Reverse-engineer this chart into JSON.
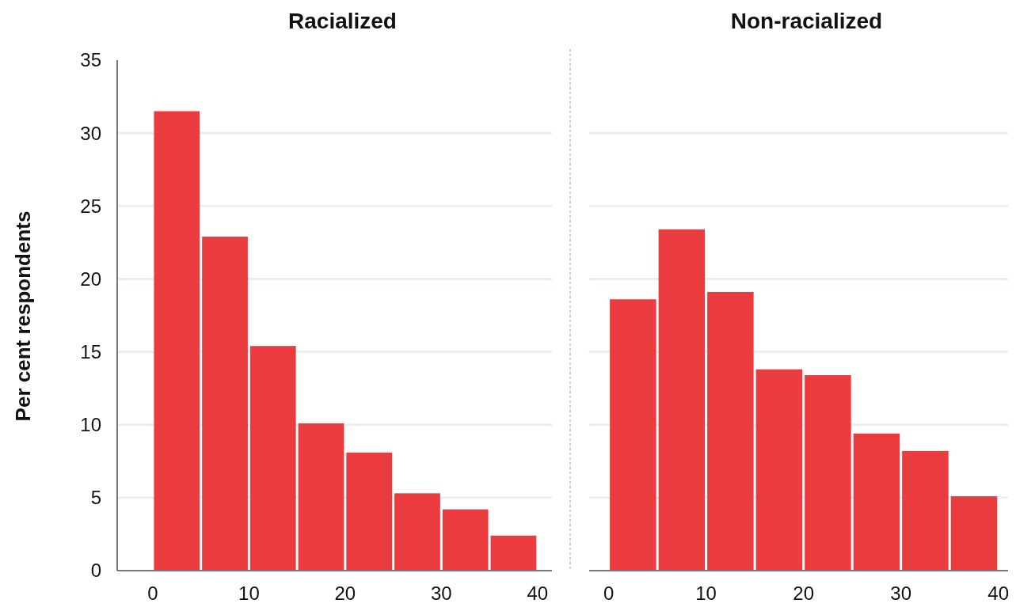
{
  "chart_data": [
    {
      "type": "histogram",
      "title": "Racialized",
      "ylabel": "Per cent respondents",
      "bins": [
        0,
        5,
        10,
        15,
        20,
        25,
        30,
        35,
        40
      ],
      "values": [
        31.5,
        22.9,
        15.4,
        10.1,
        8.1,
        5.3,
        4.2,
        2.4
      ],
      "color": "#ea3b3e",
      "xlim": [
        -3.7,
        41.5
      ],
      "xticks": [
        0,
        10,
        20,
        30,
        40
      ],
      "ylim": [
        0,
        35
      ],
      "yticks": [
        0,
        5,
        10,
        15,
        20,
        25,
        30,
        35
      ],
      "grid": "y"
    },
    {
      "type": "histogram",
      "title": "Non-racialized",
      "bins": [
        0,
        5,
        10,
        15,
        20,
        25,
        30,
        35,
        40
      ],
      "values": [
        18.6,
        23.4,
        19.1,
        13.8,
        13.4,
        9.4,
        8.2,
        5.1
      ],
      "color": "#ea3b3e",
      "xlim": [
        -2,
        41
      ],
      "xticks": [
        0,
        10,
        20,
        30,
        40
      ],
      "ylim": [
        0,
        35
      ],
      "yticks": [
        0,
        5,
        10,
        15,
        20,
        25,
        30,
        35
      ],
      "grid": "y",
      "tick_labels": "x"
    }
  ]
}
